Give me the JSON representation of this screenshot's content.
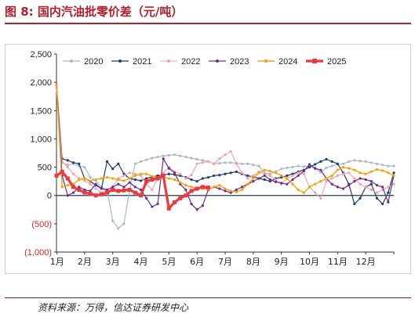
{
  "figure": {
    "title": "图 8:  国内汽油批零价差（元/吨）",
    "source": "资料来源：万得，信达证券研发中心"
  },
  "chart_data": {
    "type": "line",
    "title": "",
    "xlabel": "",
    "ylabel": "",
    "ylim": [
      -1000,
      2500
    ],
    "yticks": [
      -1000,
      -500,
      0,
      500,
      1000,
      1500,
      2000,
      2500
    ],
    "ytick_labels": [
      "(1,000)",
      "(500)",
      "0",
      "500",
      "1,000",
      "1,500",
      "2,000",
      "2,500"
    ],
    "xlim": [
      0,
      12
    ],
    "xticks": [
      0.02,
      1,
      2,
      3,
      4,
      5,
      6,
      7,
      8,
      9,
      10,
      11,
      12
    ],
    "xtick_labels": [
      "1月",
      "2月",
      "3月",
      "4月",
      "5月",
      "6月",
      "7月",
      "8月",
      "9月",
      "10月",
      "11月",
      "12月"
    ],
    "legend_position": "top",
    "grid": false,
    "series": [
      {
        "name": "2020",
        "color": "#a9b8cc",
        "width": 1.2,
        "marker": "circle",
        "x": [
          0,
          0.2,
          0.4,
          0.6,
          0.8,
          1,
          1.2,
          1.4,
          1.6,
          1.8,
          2,
          2.2,
          2.4,
          2.6,
          2.8,
          3,
          3.2,
          3.4,
          3.6,
          3.8,
          4,
          4.2,
          4.4,
          4.6,
          4.8,
          5,
          5.2,
          5.4,
          5.6,
          5.8,
          6,
          6.2,
          6.4,
          6.6,
          6.8,
          7,
          7.2,
          7.4,
          7.6,
          7.8,
          8,
          8.2,
          8.4,
          8.6,
          8.8,
          9,
          9.2,
          9.4,
          9.6,
          9.8,
          10,
          10.2,
          10.4,
          10.6,
          10.8,
          11,
          11.2,
          11.4,
          11.6,
          11.8,
          12
        ],
        "y": [
          1950,
          580,
          540,
          560,
          520,
          500,
          320,
          260,
          150,
          100,
          -450,
          -580,
          -500,
          100,
          560,
          600,
          630,
          660,
          680,
          700,
          710,
          720,
          700,
          680,
          660,
          640,
          620,
          600,
          560,
          570,
          580,
          580,
          570,
          560,
          560,
          540,
          520,
          400,
          380,
          420,
          470,
          490,
          500,
          520,
          510,
          520,
          470,
          410,
          490,
          520,
          550,
          560,
          600,
          620,
          610,
          600,
          580,
          560,
          540,
          520,
          520
        ]
      },
      {
        "name": "2021",
        "color": "#1e3f66",
        "width": 1.2,
        "marker": "circle",
        "x": [
          0,
          0.2,
          0.4,
          0.6,
          0.8,
          1,
          1.2,
          1.4,
          1.6,
          1.8,
          2,
          2.2,
          2.4,
          2.6,
          2.8,
          3,
          3.2,
          3.4,
          3.6,
          3.8,
          4,
          4.2,
          4.4,
          4.6,
          4.8,
          5,
          5.2,
          5.4,
          5.6,
          5.8,
          6,
          6.2,
          6.4,
          6.6,
          6.8,
          7,
          7.2,
          7.4,
          7.6,
          7.8,
          8,
          8.2,
          8.4,
          8.6,
          8.8,
          9,
          9.2,
          9.4,
          9.6,
          9.8,
          10,
          10.2,
          10.4,
          10.6,
          10.8,
          11,
          11.2,
          11.4,
          11.6,
          11.8,
          12
        ],
        "y": [
          1950,
          650,
          620,
          580,
          560,
          300,
          250,
          180,
          120,
          600,
          470,
          560,
          380,
          300,
          280,
          260,
          300,
          330,
          350,
          360,
          380,
          370,
          350,
          320,
          280,
          250,
          300,
          320,
          350,
          360,
          380,
          400,
          420,
          380,
          350,
          330,
          300,
          280,
          250,
          300,
          320,
          350,
          380,
          420,
          450,
          500,
          550,
          600,
          640,
          600,
          560,
          400,
          200,
          -150,
          -50,
          150,
          200,
          -50,
          -150,
          50,
          400
        ]
      },
      {
        "name": "2022",
        "color": "#f4a0a8",
        "width": 1.1,
        "marker": "circle",
        "x": [
          0,
          0.2,
          0.4,
          0.6,
          0.8,
          1,
          1.2,
          1.4,
          1.6,
          1.8,
          2,
          2.2,
          2.4,
          2.6,
          2.8,
          3,
          3.2,
          3.4,
          3.6,
          3.8,
          4,
          4.2,
          4.4,
          4.6,
          4.8,
          5,
          5.2,
          5.4,
          5.6,
          5.8,
          6,
          6.2,
          6.4,
          6.6,
          6.8,
          7,
          7.2,
          7.4,
          7.6,
          7.8,
          8,
          8.2,
          8.4,
          8.6,
          8.8,
          9,
          9.2,
          9.4,
          9.6,
          9.8,
          10,
          10.2,
          10.4,
          10.6,
          10.8,
          11,
          11.2,
          11.4,
          11.6,
          11.8,
          12
        ],
        "y": [
          1900,
          600,
          500,
          380,
          300,
          260,
          200,
          120,
          50,
          100,
          150,
          300,
          350,
          400,
          380,
          350,
          200,
          100,
          300,
          400,
          500,
          420,
          380,
          300,
          360,
          560,
          580,
          600,
          560,
          650,
          720,
          780,
          560,
          400,
          300,
          350,
          420,
          380,
          350,
          280,
          200,
          300,
          350,
          400,
          380,
          150,
          50,
          -50,
          250,
          300,
          350,
          380,
          400,
          300,
          200,
          150,
          100,
          50,
          100,
          150,
          200
        ]
      },
      {
        "name": "2023",
        "color": "#6b2d8f",
        "width": 1.2,
        "marker": "circle",
        "x": [
          0,
          0.2,
          0.4,
          0.6,
          0.8,
          1,
          1.2,
          1.4,
          1.6,
          1.8,
          2,
          2.2,
          2.4,
          2.6,
          2.8,
          3,
          3.2,
          3.4,
          3.6,
          3.8,
          4,
          4.2,
          4.4,
          4.6,
          4.8,
          5,
          5.2,
          5.4,
          5.6,
          5.8,
          6,
          6.2,
          6.4,
          6.6,
          6.8,
          7,
          7.2,
          7.4,
          7.6,
          7.8,
          8,
          8.2,
          8.4,
          8.6,
          8.8,
          9,
          9.2,
          9.4,
          9.6,
          9.8,
          10,
          10.2,
          10.4,
          10.6,
          10.8,
          11,
          11.2,
          11.4,
          11.6,
          11.8,
          12
        ],
        "y": [
          1950,
          350,
          0,
          50,
          150,
          100,
          80,
          200,
          120,
          100,
          150,
          200,
          150,
          230,
          150,
          100,
          -50,
          -200,
          -150,
          650,
          480,
          400,
          200,
          100,
          -150,
          -250,
          -180,
          100,
          150,
          120,
          80,
          50,
          100,
          150,
          200,
          250,
          300,
          350,
          280,
          240,
          220,
          200,
          280,
          350,
          430,
          550,
          480,
          450,
          300,
          200,
          150,
          120,
          180,
          250,
          300,
          280,
          250,
          180,
          150,
          -120,
          350
        ]
      },
      {
        "name": "2024",
        "color": "#f5a20a",
        "width": 1.4,
        "marker": "circle",
        "x": [
          0,
          0.2,
          0.4,
          0.6,
          0.8,
          1,
          1.2,
          1.4,
          1.6,
          1.8,
          2,
          2.2,
          2.4,
          2.6,
          2.8,
          3,
          3.2,
          3.4,
          3.6,
          3.8,
          4,
          4.2,
          4.4,
          4.6,
          4.8,
          5,
          5.2,
          5.4,
          5.6,
          5.8,
          6,
          6.2,
          6.4,
          6.6,
          6.8,
          7,
          7.2,
          7.4,
          7.6,
          7.8,
          8,
          8.2,
          8.4,
          8.6,
          8.8,
          9,
          9.2,
          9.4,
          9.6,
          9.8,
          10,
          10.2,
          10.4,
          10.6,
          10.8,
          11,
          11.2,
          11.4,
          11.6,
          11.8,
          12
        ],
        "y": [
          1950,
          150,
          180,
          200,
          280,
          300,
          260,
          280,
          300,
          320,
          300,
          280,
          260,
          300,
          350,
          380,
          380,
          340,
          320,
          320,
          300,
          280,
          230,
          180,
          150,
          130,
          120,
          110,
          150,
          180,
          120,
          80,
          60,
          100,
          200,
          300,
          400,
          450,
          430,
          400,
          350,
          300,
          200,
          100,
          50,
          150,
          200,
          250,
          300,
          350,
          450,
          500,
          480,
          450,
          400,
          380,
          420,
          460,
          440,
          400,
          350
        ]
      },
      {
        "name": "2025",
        "color": "#f0383c",
        "width": 3.2,
        "marker": "square",
        "x": [
          0,
          0.2,
          0.4,
          0.6,
          0.8,
          1,
          1.2,
          1.4,
          1.6,
          1.8,
          2,
          2.2,
          2.4,
          2.6,
          2.8,
          3,
          3.2,
          3.4,
          3.6,
          3.8,
          4,
          4.2,
          4.4,
          4.6,
          4.8,
          5,
          5.2,
          5.4
        ],
        "y": [
          350,
          420,
          300,
          150,
          100,
          50,
          30,
          0,
          20,
          50,
          100,
          80,
          90,
          100,
          50,
          0,
          250,
          280,
          300,
          350,
          -230,
          -120,
          -50,
          0,
          80,
          120,
          150,
          140
        ]
      }
    ]
  }
}
